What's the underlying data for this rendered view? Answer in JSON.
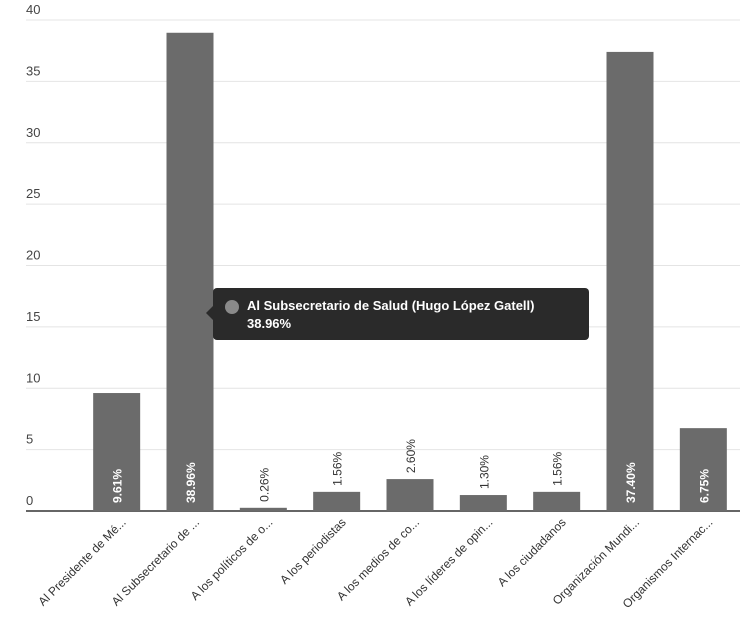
{
  "chart_data": {
    "type": "bar",
    "categories": [
      "Al Presidente de Mé...",
      "Al Subsecretario de ...",
      "A los políticos de o...",
      "A los periodistas",
      "A los medios de co...",
      "A los líderes de opin...",
      "A los ciudadanos",
      "Organización Mundi...",
      "Organismos Internac..."
    ],
    "values": [
      9.61,
      38.96,
      0.26,
      1.56,
      2.6,
      1.3,
      1.56,
      37.4,
      6.75
    ],
    "data_labels": [
      "9.61%",
      "38.96%",
      "0.26%",
      "1.56%",
      "2.60%",
      "1.30%",
      "1.56%",
      "37.40%",
      "6.75%"
    ],
    "yticks": [
      0,
      5,
      10,
      15,
      20,
      25,
      30,
      35,
      40
    ],
    "ylim": [
      0,
      40
    ],
    "grid": true,
    "bar_color": "#6b6b6b",
    "title": "",
    "xlabel": "",
    "ylabel": ""
  },
  "tooltip": {
    "title": "Al Subsecretario de Salud (Hugo López  Gatell)",
    "value": "38.96%"
  }
}
